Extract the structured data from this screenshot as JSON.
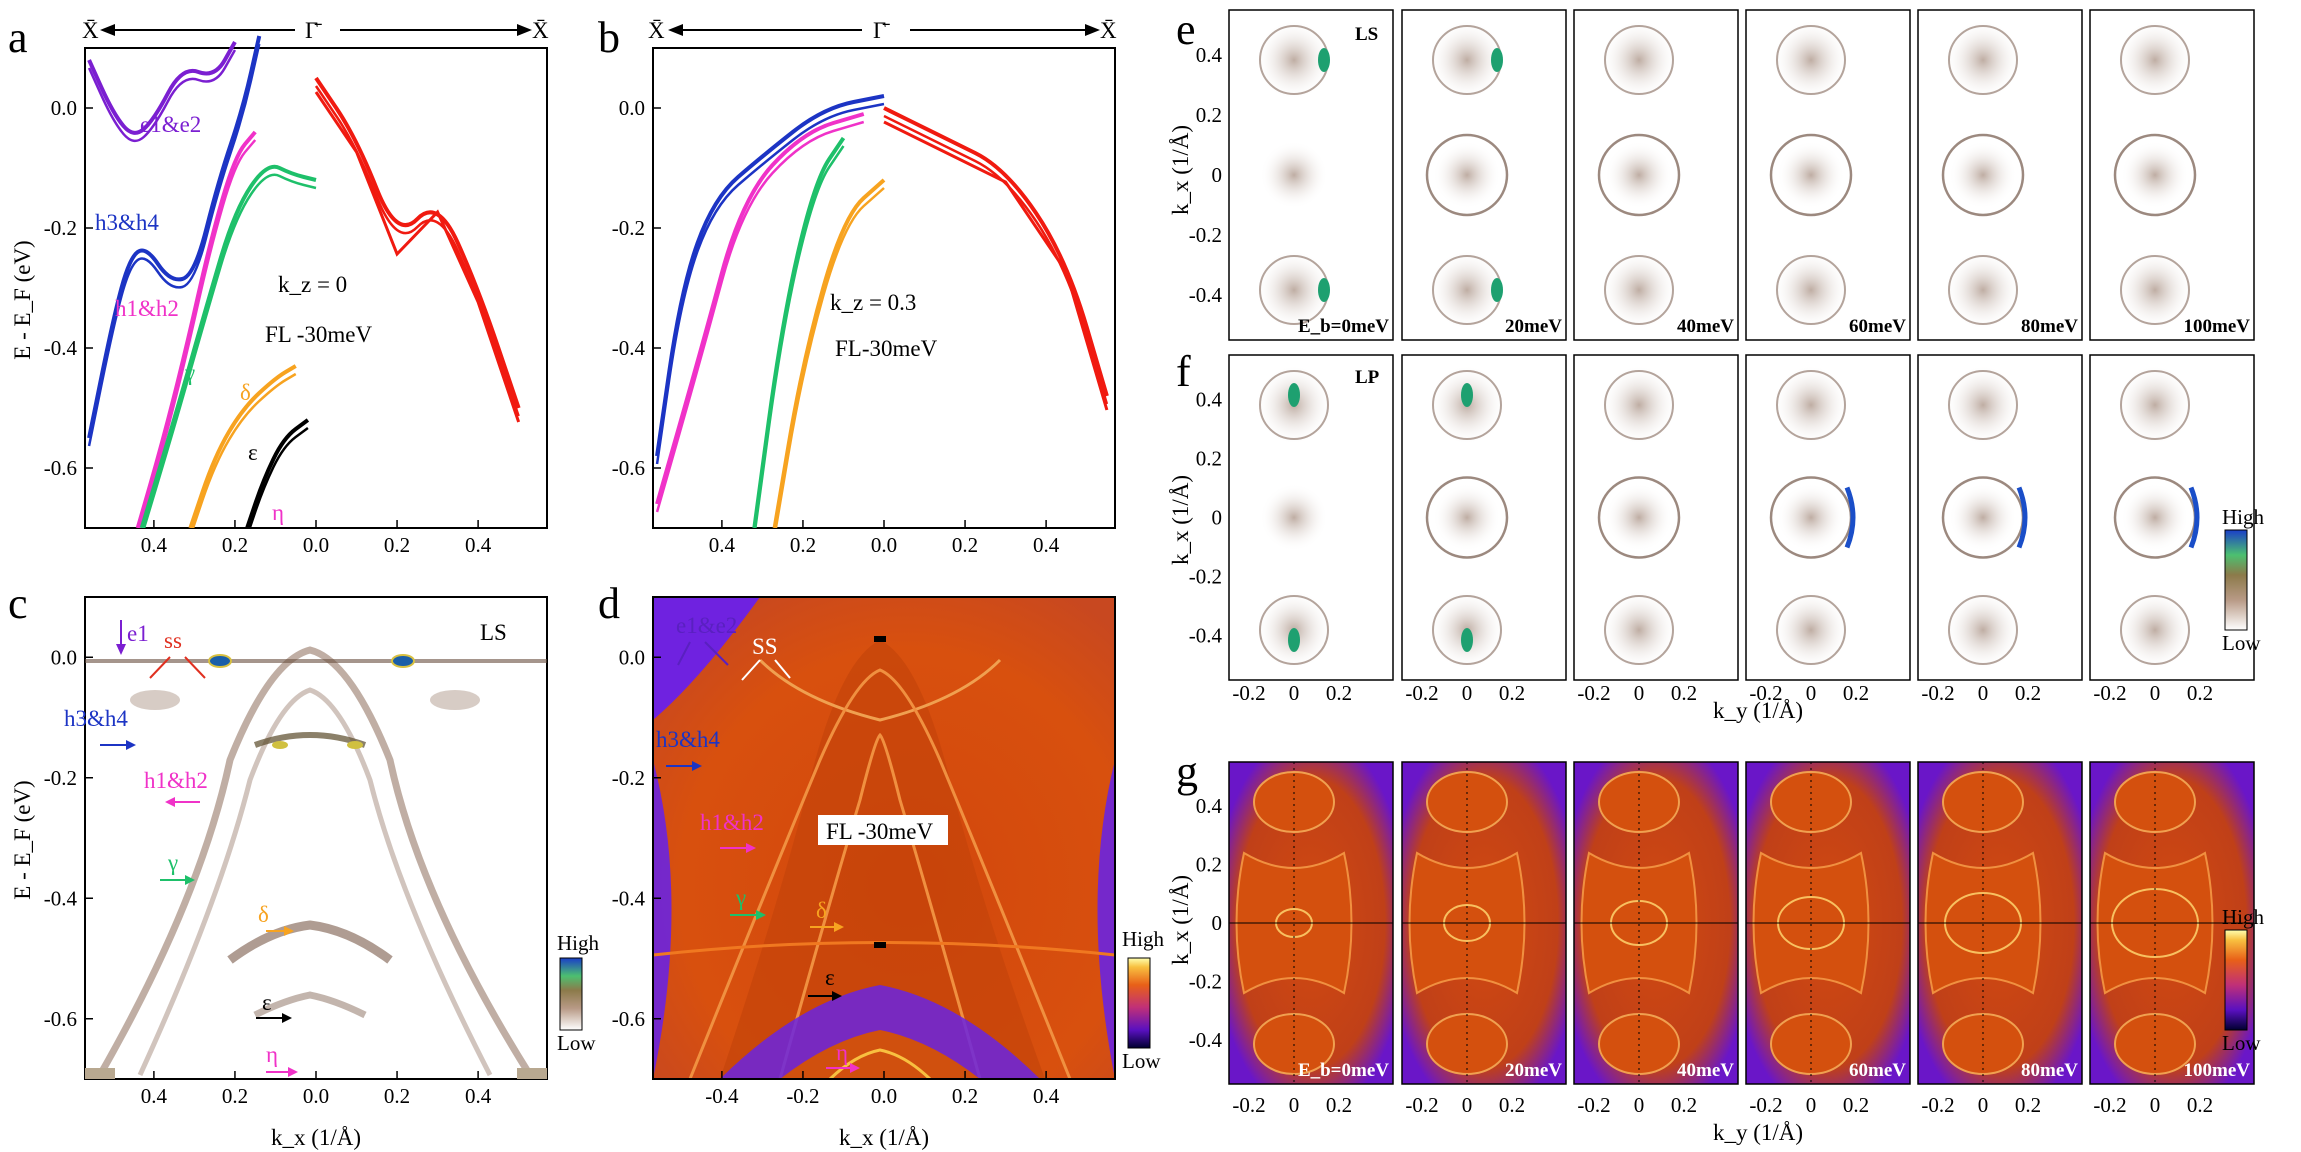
{
  "figure": {
    "panel_labels": [
      "a",
      "b",
      "c",
      "d",
      "e",
      "f",
      "g"
    ],
    "hsp_labels": {
      "left": "X̄",
      "center": "Γ̄",
      "right": "X̄"
    },
    "arrows_top": "← Γ̄ →"
  },
  "chart_data": [
    {
      "id": "a",
      "type": "line",
      "xlabel": "",
      "ylabel": "E - E_F (eV)",
      "xlim": [
        -0.57,
        0.57
      ],
      "ylim": [
        -0.7,
        0.1
      ],
      "x_ticks": [
        "0.4",
        "0.2",
        "0.0",
        "0.2",
        "0.4"
      ],
      "y_ticks": [
        "0.0",
        "-0.2",
        "-0.4",
        "-0.6"
      ],
      "annotations": [
        "e1&e2",
        "h3&h4",
        "h1&h2",
        "γ",
        "δ",
        "ε",
        "η",
        "k_z = 0",
        "FL -30meV"
      ],
      "series": [
        {
          "name": "e1&e2",
          "color": "#7b1fd1",
          "x": [
            -0.56,
            -0.5,
            -0.45,
            -0.4,
            -0.33,
            -0.25,
            -0.2
          ],
          "y": [
            0.08,
            -0.01,
            -0.05,
            -0.02,
            0.07,
            0.05,
            0.11
          ]
        },
        {
          "name": "h3&h4",
          "color": "#1c34c4",
          "x": [
            -0.56,
            -0.5,
            -0.46,
            -0.42,
            -0.36,
            -0.3,
            -0.24,
            -0.18,
            -0.14
          ],
          "y": [
            -0.55,
            -0.35,
            -0.25,
            -0.23,
            -0.29,
            -0.28,
            -0.12,
            0.0,
            0.12
          ]
        },
        {
          "name": "h1&h2",
          "color": "#f032c8",
          "x": [
            -0.44,
            -0.38,
            -0.32,
            -0.26,
            -0.2,
            -0.15
          ],
          "y": [
            -0.7,
            -0.56,
            -0.4,
            -0.22,
            -0.08,
            -0.04
          ]
        },
        {
          "name": "γ",
          "color": "#1ec06a",
          "x": [
            -0.43,
            -0.35,
            -0.27,
            -0.2,
            -0.12,
            -0.06,
            0.0
          ],
          "y": [
            -0.7,
            -0.52,
            -0.33,
            -0.17,
            -0.09,
            -0.11,
            -0.12
          ]
        },
        {
          "name": "δ",
          "color": "#f7a320",
          "x": [
            -0.31,
            -0.25,
            -0.18,
            -0.1,
            -0.05
          ],
          "y": [
            -0.7,
            -0.58,
            -0.5,
            -0.45,
            -0.43
          ]
        },
        {
          "name": "ε",
          "color": "#000000",
          "x": [
            -0.17,
            -0.13,
            -0.08,
            -0.02
          ],
          "y": [
            -0.7,
            -0.62,
            -0.55,
            -0.52
          ]
        },
        {
          "name": "red_bands",
          "color": "#f01a10",
          "x": [
            0.0,
            0.1,
            0.2,
            0.3,
            0.4,
            0.5
          ],
          "y": [
            0.05,
            -0.05,
            -0.22,
            -0.15,
            -0.3,
            -0.5
          ]
        }
      ]
    },
    {
      "id": "b",
      "type": "line",
      "xlabel": "",
      "ylabel": "",
      "xlim": [
        -0.57,
        0.57
      ],
      "ylim": [
        -0.7,
        0.1
      ],
      "x_ticks": [
        "0.4",
        "0.2",
        "0.0",
        "0.2",
        "0.4"
      ],
      "y_ticks": [
        "0.0",
        "-0.2",
        "-0.4",
        "-0.6"
      ],
      "annotations": [
        "k_z = 0.3",
        "FL-30meV"
      ],
      "series": [
        {
          "name": "blue",
          "color": "#1c34c4",
          "x": [
            -0.56,
            -0.5,
            -0.42,
            -0.3,
            -0.15,
            0.0
          ],
          "y": [
            -0.58,
            -0.3,
            -0.15,
            -0.08,
            0.0,
            0.02
          ]
        },
        {
          "name": "magenta",
          "color": "#f032c8",
          "x": [
            -0.56,
            -0.45,
            -0.35,
            -0.2,
            -0.05
          ],
          "y": [
            -0.66,
            -0.4,
            -0.15,
            -0.04,
            -0.01
          ]
        },
        {
          "name": "green",
          "color": "#1ec06a",
          "x": [
            -0.32,
            -0.25,
            -0.17,
            -0.1
          ],
          "y": [
            -0.7,
            -0.35,
            -0.12,
            -0.05
          ]
        },
        {
          "name": "orange",
          "color": "#f7a320",
          "x": [
            -0.27,
            -0.2,
            -0.1,
            0.0
          ],
          "y": [
            -0.7,
            -0.42,
            -0.18,
            -0.12
          ]
        },
        {
          "name": "red",
          "color": "#f01a10",
          "x": [
            0.0,
            0.15,
            0.3,
            0.45,
            0.55
          ],
          "y": [
            0.0,
            -0.05,
            -0.1,
            -0.25,
            -0.48
          ]
        }
      ]
    },
    {
      "id": "c",
      "type": "heatmap",
      "xlabel": "k_x  (1/Å)",
      "ylabel": "E - E_F (eV)",
      "xlim": [
        -0.57,
        0.57
      ],
      "ylim": [
        -0.7,
        0.1
      ],
      "x_ticks": [
        "0.4",
        "0.2",
        "0.0",
        "0.2",
        "0.4"
      ],
      "y_ticks": [
        "0.0",
        "-0.2",
        "-0.4",
        "-0.6"
      ],
      "title": "LS",
      "colorbar": {
        "high": "High",
        "low": "Low"
      },
      "annotations": [
        "e1",
        "ss",
        "h3&h4",
        "h1&h2",
        "γ",
        "δ",
        "ε",
        "η"
      ]
    },
    {
      "id": "d",
      "type": "heatmap",
      "xlabel": "k_x  (1/Å)",
      "ylabel": "",
      "xlim": [
        -0.57,
        0.57
      ],
      "ylim": [
        -0.7,
        0.1
      ],
      "x_ticks": [
        "-0.4",
        "-0.2",
        "0.0",
        "0.2",
        "0.4"
      ],
      "y_ticks": [
        "0.0",
        "-0.2",
        "-0.4",
        "-0.6"
      ],
      "title": "FL -30meV",
      "colorbar": {
        "high": "High",
        "low": "Low"
      },
      "annotations": [
        "e1&e2",
        "SS",
        "h3&h4",
        "h1&h2",
        "γ",
        "δ",
        "ε",
        "η"
      ]
    },
    {
      "id": "e",
      "type": "heatmap",
      "title": "LS",
      "ylabel": "k_x  (1/Å)",
      "y_ticks": [
        "0.4",
        "0.2",
        "0",
        "-0.2",
        "-0.4"
      ],
      "energies": [
        "E_b=0meV",
        "20meV",
        "40meV",
        "60meV",
        "80meV",
        "100meV"
      ]
    },
    {
      "id": "f",
      "type": "heatmap",
      "title": "LP",
      "ylabel": "k_x  (1/Å)",
      "xlabel": "k_y  (1/Å)",
      "y_ticks": [
        "0.4",
        "0.2",
        "0",
        "-0.2",
        "-0.4"
      ],
      "x_ticks": [
        "-0.2",
        "0",
        "0.2"
      ],
      "colorbar": {
        "high": "High",
        "low": "Low"
      }
    },
    {
      "id": "g",
      "type": "heatmap",
      "ylabel": "k_x  (1/Å)",
      "xlabel": "k_y  (1/Å)",
      "y_ticks": [
        "0.4",
        "0.2",
        "0",
        "-0.2",
        "-0.4"
      ],
      "x_ticks": [
        "-0.2",
        "0",
        "0.2"
      ],
      "energies": [
        "E_b=0meV",
        "20meV",
        "40meV",
        "60meV",
        "80meV",
        "100meV"
      ],
      "colorbar": {
        "high": "High",
        "low": "Low"
      }
    }
  ]
}
